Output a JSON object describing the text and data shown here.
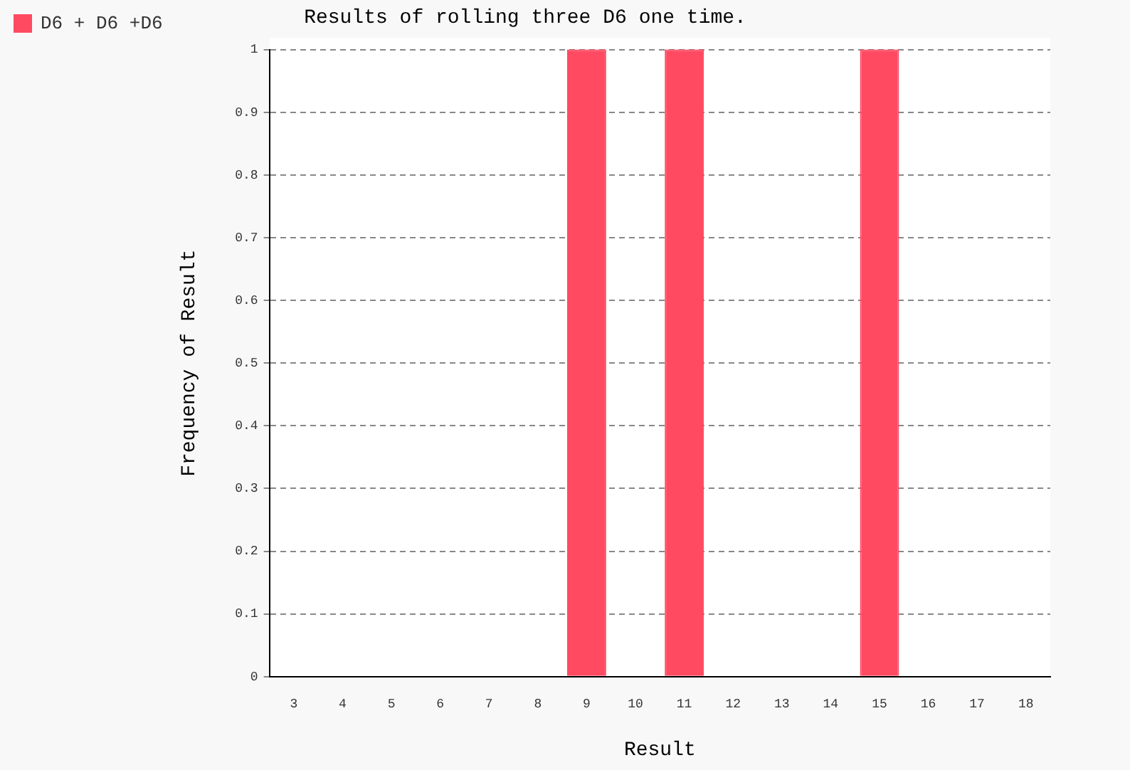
{
  "chart_data": {
    "type": "bar",
    "title": "Results of rolling three D6 one time.",
    "xlabel": "Result",
    "ylabel": "Frequency of Result",
    "categories": [
      "3",
      "4",
      "5",
      "6",
      "7",
      "8",
      "9",
      "10",
      "11",
      "12",
      "13",
      "14",
      "15",
      "16",
      "17",
      "18"
    ],
    "series": [
      {
        "name": "D6 + D6 +D6",
        "color": "#ff4a62",
        "values": [
          0,
          0,
          0,
          0,
          0,
          0,
          1,
          0,
          1,
          0,
          0,
          0,
          1,
          0,
          0,
          0
        ]
      }
    ],
    "ylim": [
      0,
      1
    ],
    "yticks": [
      0,
      0.1,
      0.2,
      0.3,
      0.4,
      0.5,
      0.6,
      0.7,
      0.8,
      0.9,
      1
    ],
    "grid": "y",
    "legend": "top left"
  }
}
